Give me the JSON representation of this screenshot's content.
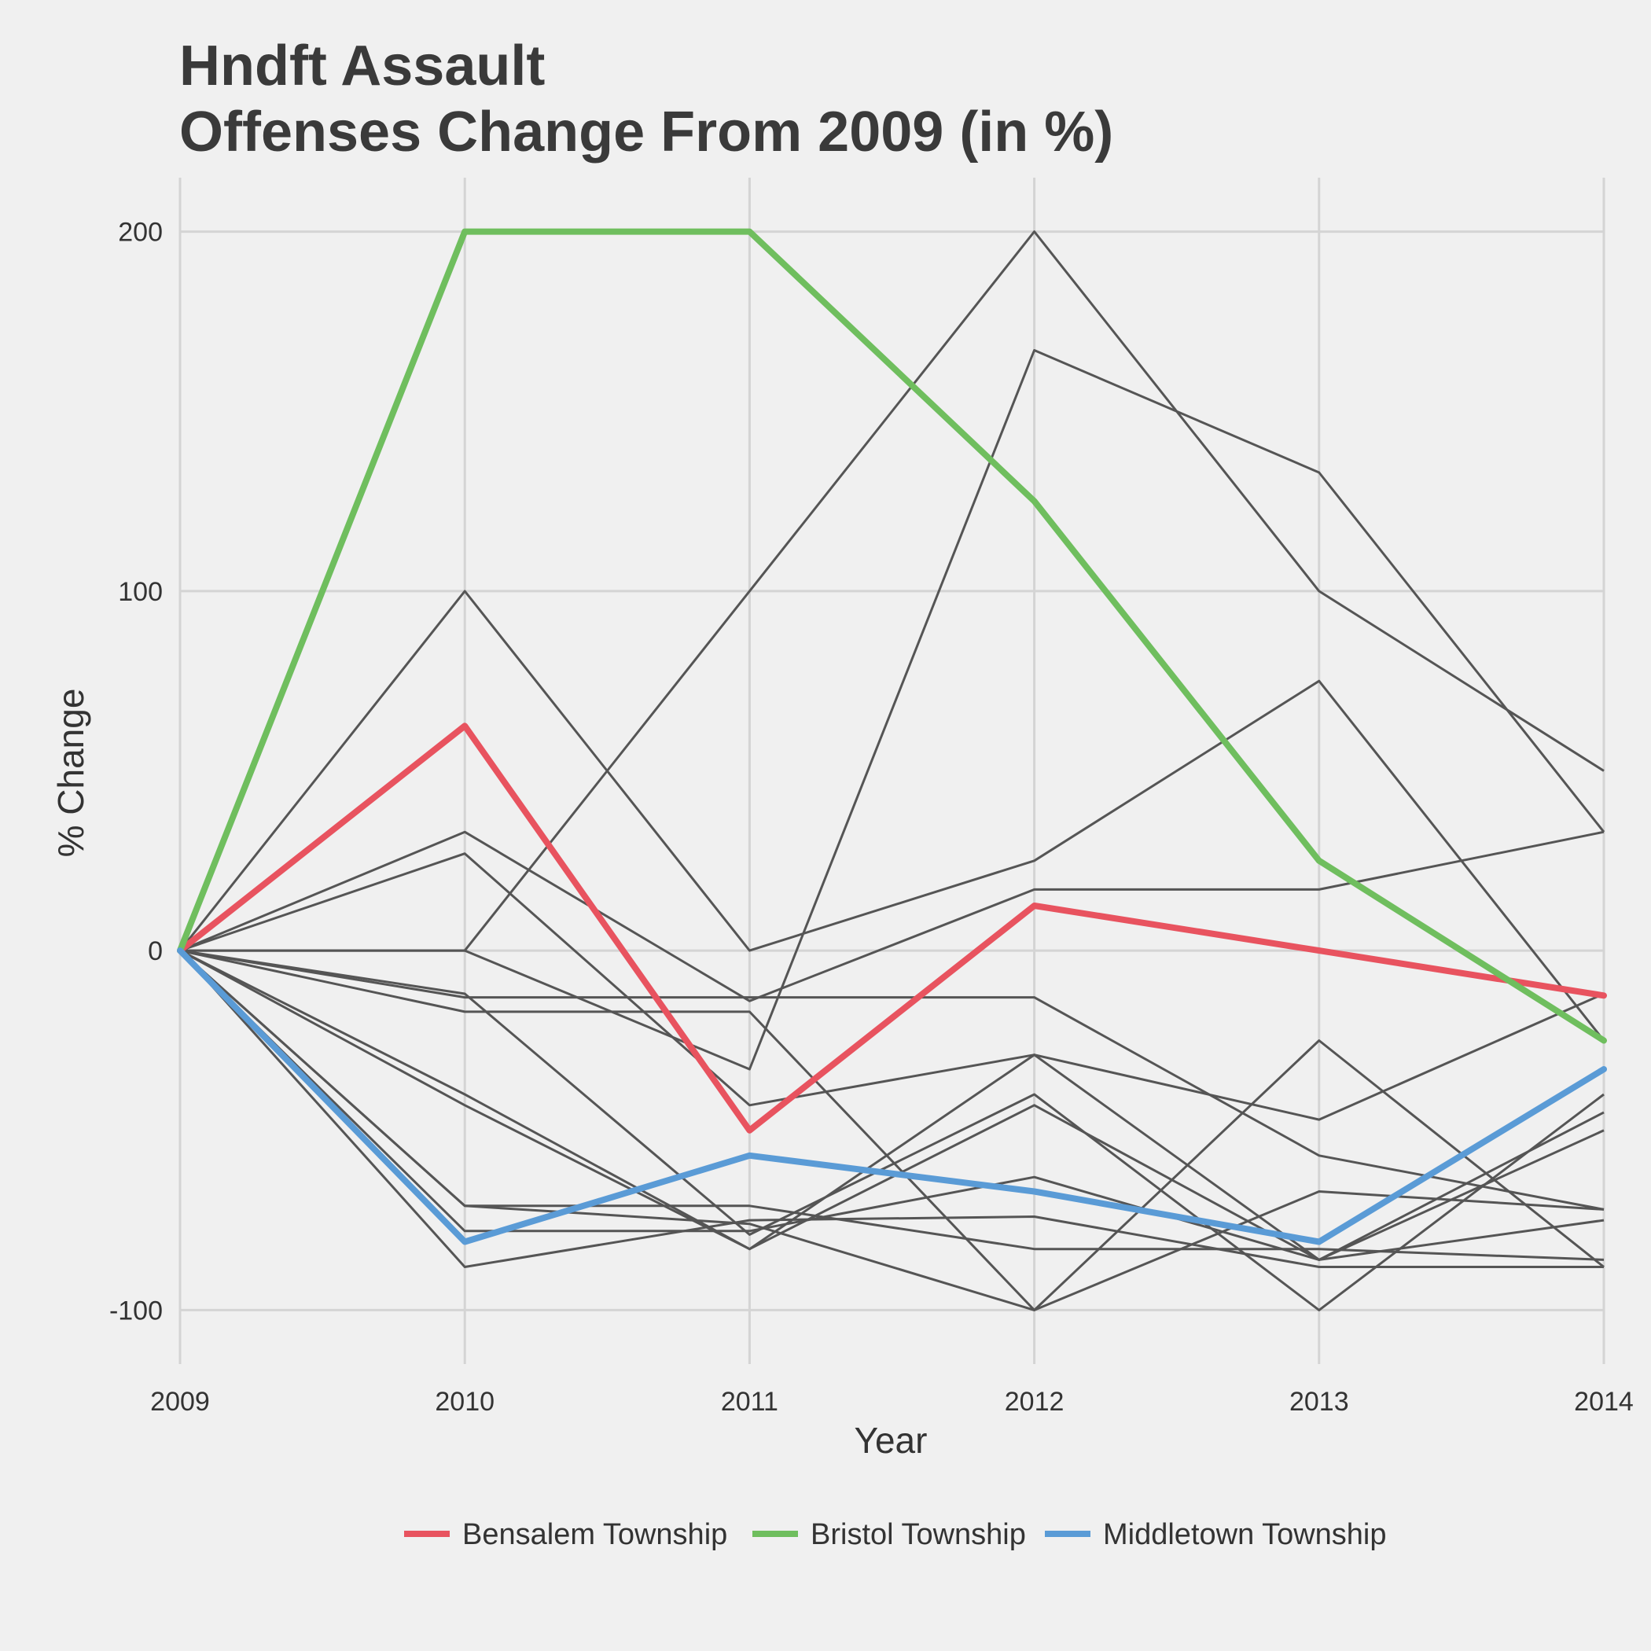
{
  "chart_data": {
    "type": "line",
    "title": "Hndft Assault",
    "subtitle": "Offenses Change From 2009 (in %)",
    "xlabel": "Year",
    "ylabel": "% Change",
    "x": [
      2009,
      2010,
      2011,
      2012,
      2013,
      2014
    ],
    "ylim": [
      -115,
      215
    ],
    "yticks": [
      -100,
      0,
      100,
      200
    ],
    "grid": true,
    "legend_position": "bottom",
    "highlighted_series": [
      {
        "name": "Bensalem Township",
        "color": "#e8535f",
        "values": [
          0,
          62.5,
          -50,
          12.5,
          0,
          -12.5
        ]
      },
      {
        "name": "Bristol Township",
        "color": "#6fbe5e",
        "values": [
          0,
          200,
          200,
          125,
          25,
          -25
        ]
      },
      {
        "name": "Middletown Township",
        "color": "#5a9bd6",
        "values": [
          0,
          -81,
          -57,
          -67,
          -81,
          -33
        ]
      }
    ],
    "background_series": [
      {
        "color": "#555555",
        "values": [
          0,
          0,
          100,
          200,
          100,
          50
        ]
      },
      {
        "color": "#555555",
        "values": [
          0,
          0,
          -33,
          167,
          133,
          33
        ]
      },
      {
        "color": "#555555",
        "values": [
          0,
          100,
          0,
          25,
          75,
          -25
        ]
      },
      {
        "color": "#555555",
        "values": [
          0,
          33,
          -14,
          17,
          17,
          33
        ]
      },
      {
        "color": "#555555",
        "values": [
          0,
          27,
          -43,
          -29,
          -47,
          -12
        ]
      },
      {
        "color": "#555555",
        "values": [
          0,
          -13,
          -13,
          -13,
          -57,
          -72
        ]
      },
      {
        "color": "#555555",
        "values": [
          0,
          -17,
          -17,
          -100,
          -25,
          -88
        ]
      },
      {
        "color": "#555555",
        "values": [
          0,
          -12,
          -79,
          -40,
          -100,
          -40
        ]
      },
      {
        "color": "#555555",
        "values": [
          0,
          -40,
          -83,
          -43,
          -86,
          -45
        ]
      },
      {
        "color": "#555555",
        "values": [
          0,
          -43,
          -83,
          -29,
          -86,
          -50
        ]
      },
      {
        "color": "#555555",
        "values": [
          0,
          -71,
          -76,
          -100,
          -67,
          -72
        ]
      },
      {
        "color": "#555555",
        "values": [
          0,
          -71,
          -71,
          -83,
          -83,
          -86
        ]
      },
      {
        "color": "#555555",
        "values": [
          0,
          -78,
          -78,
          -63,
          -86,
          -75
        ]
      },
      {
        "color": "#555555",
        "values": [
          0,
          -88,
          -75,
          -74,
          -88,
          -88
        ]
      }
    ]
  }
}
